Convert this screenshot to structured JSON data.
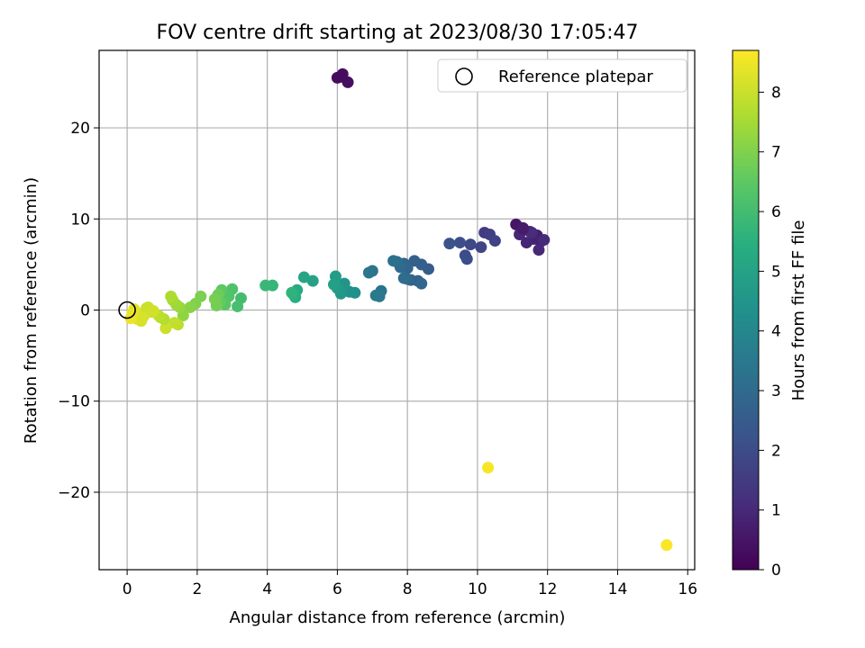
{
  "chart_data": {
    "type": "scatter",
    "title": "FOV centre drift starting at 2023/08/30 17:05:47",
    "xlabel": "Angular distance from reference (arcmin)",
    "ylabel": "Rotation from reference (arcmin)",
    "xlim": [
      -0.8,
      16.2
    ],
    "ylim": [
      -28.5,
      28.5
    ],
    "xticks": [
      0,
      2,
      4,
      6,
      8,
      10,
      12,
      14,
      16
    ],
    "yticks": [
      -20,
      -10,
      0,
      10,
      20
    ],
    "grid": true,
    "legend": {
      "position": "top-right",
      "entries": [
        "Reference platepar"
      ]
    },
    "reference_point": {
      "x": 0,
      "y": 0
    },
    "colorbar": {
      "label": "Hours from first FF file",
      "range": [
        0,
        8.7
      ],
      "ticks": [
        0,
        1,
        2,
        3,
        4,
        5,
        6,
        7,
        8
      ],
      "colormap": "viridis"
    },
    "series": [
      {
        "x": [
          6.0,
          6.15,
          6.3,
          6.1,
          11.1,
          11.3,
          11.5,
          11.7,
          11.8,
          11.6,
          11.4,
          11.2,
          11.75,
          11.9,
          11.55,
          11.3,
          10.2,
          10.35,
          10.5,
          10.1,
          9.8,
          9.65,
          9.7,
          9.5,
          9.2,
          8.6,
          8.4,
          8.2,
          8.0,
          7.9,
          7.8,
          7.7,
          7.6,
          8.1,
          8.3,
          8.4,
          8.0,
          7.9,
          7.25,
          7.2,
          7.1,
          7.0,
          6.9,
          6.5,
          6.35,
          6.2,
          6.1,
          6.0,
          5.95,
          5.9,
          5.3,
          5.05,
          4.85,
          4.8,
          4.75,
          4.7,
          4.15,
          3.95,
          3.25,
          3.15,
          3.0,
          2.9,
          2.8,
          2.7,
          2.65,
          2.6,
          2.55,
          2.5,
          2.1,
          1.95,
          1.8,
          1.6,
          1.5,
          1.4,
          1.3,
          1.25,
          1.45,
          1.35,
          1.1,
          1.05,
          0.95,
          0.9,
          0.7,
          0.6,
          0.5,
          0.4,
          0.35,
          0.3,
          0.25,
          0.2,
          0.15,
          0.1,
          0.55,
          0.75,
          0.45,
          10.3,
          15.4
        ],
        "y": [
          25.5,
          25.9,
          25.0,
          25.6,
          9.4,
          9.0,
          8.6,
          8.2,
          7.5,
          7.8,
          7.4,
          8.3,
          6.6,
          7.7,
          8.5,
          8.9,
          8.5,
          8.3,
          7.6,
          6.9,
          7.2,
          6.0,
          5.6,
          7.4,
          7.3,
          4.5,
          5.0,
          5.4,
          4.6,
          5.1,
          4.7,
          5.3,
          5.4,
          3.3,
          3.2,
          2.9,
          3.4,
          3.5,
          2.1,
          1.5,
          1.6,
          4.3,
          4.1,
          1.9,
          2.0,
          2.9,
          1.8,
          2.4,
          3.7,
          2.8,
          3.2,
          3.6,
          2.2,
          1.4,
          1.7,
          1.9,
          2.7,
          2.7,
          1.3,
          0.4,
          2.3,
          1.5,
          0.6,
          2.2,
          0.9,
          1.7,
          0.5,
          1.2,
          1.5,
          0.7,
          0.3,
          -0.6,
          0.3,
          0.6,
          1.1,
          1.5,
          -1.6,
          -1.4,
          -2.0,
          -1.0,
          -0.8,
          -0.6,
          -0.2,
          0.3,
          -0.5,
          -1.2,
          -0.4,
          -1.0,
          -0.7,
          0.1,
          -0.3,
          -0.9,
          0.2,
          -0.1,
          -0.8,
          -17.3,
          -25.8
        ],
        "hours": [
          0.25,
          0.3,
          0.35,
          0.28,
          0.5,
          0.6,
          0.7,
          0.75,
          0.8,
          0.85,
          0.9,
          0.95,
          1.0,
          1.05,
          1.1,
          0.65,
          1.5,
          1.6,
          1.7,
          1.8,
          1.9,
          2.0,
          2.05,
          2.1,
          2.2,
          2.5,
          2.6,
          2.7,
          2.8,
          2.9,
          3.0,
          3.1,
          3.2,
          2.65,
          2.75,
          2.85,
          2.95,
          3.05,
          3.35,
          3.45,
          3.55,
          3.3,
          3.4,
          4.3,
          4.4,
          4.5,
          4.6,
          4.7,
          4.8,
          4.9,
          5.0,
          5.1,
          5.3,
          5.4,
          5.5,
          5.6,
          5.7,
          5.8,
          6.0,
          6.1,
          6.2,
          6.3,
          6.4,
          6.5,
          6.6,
          6.7,
          6.8,
          6.85,
          6.9,
          7.0,
          7.1,
          7.2,
          7.3,
          7.4,
          7.5,
          7.6,
          7.8,
          7.9,
          8.0,
          7.7,
          7.75,
          7.85,
          7.95,
          8.05,
          8.1,
          8.15,
          8.2,
          8.25,
          8.3,
          8.35,
          8.4,
          8.45,
          8.0,
          8.1,
          8.2,
          8.6,
          8.65
        ]
      }
    ]
  }
}
